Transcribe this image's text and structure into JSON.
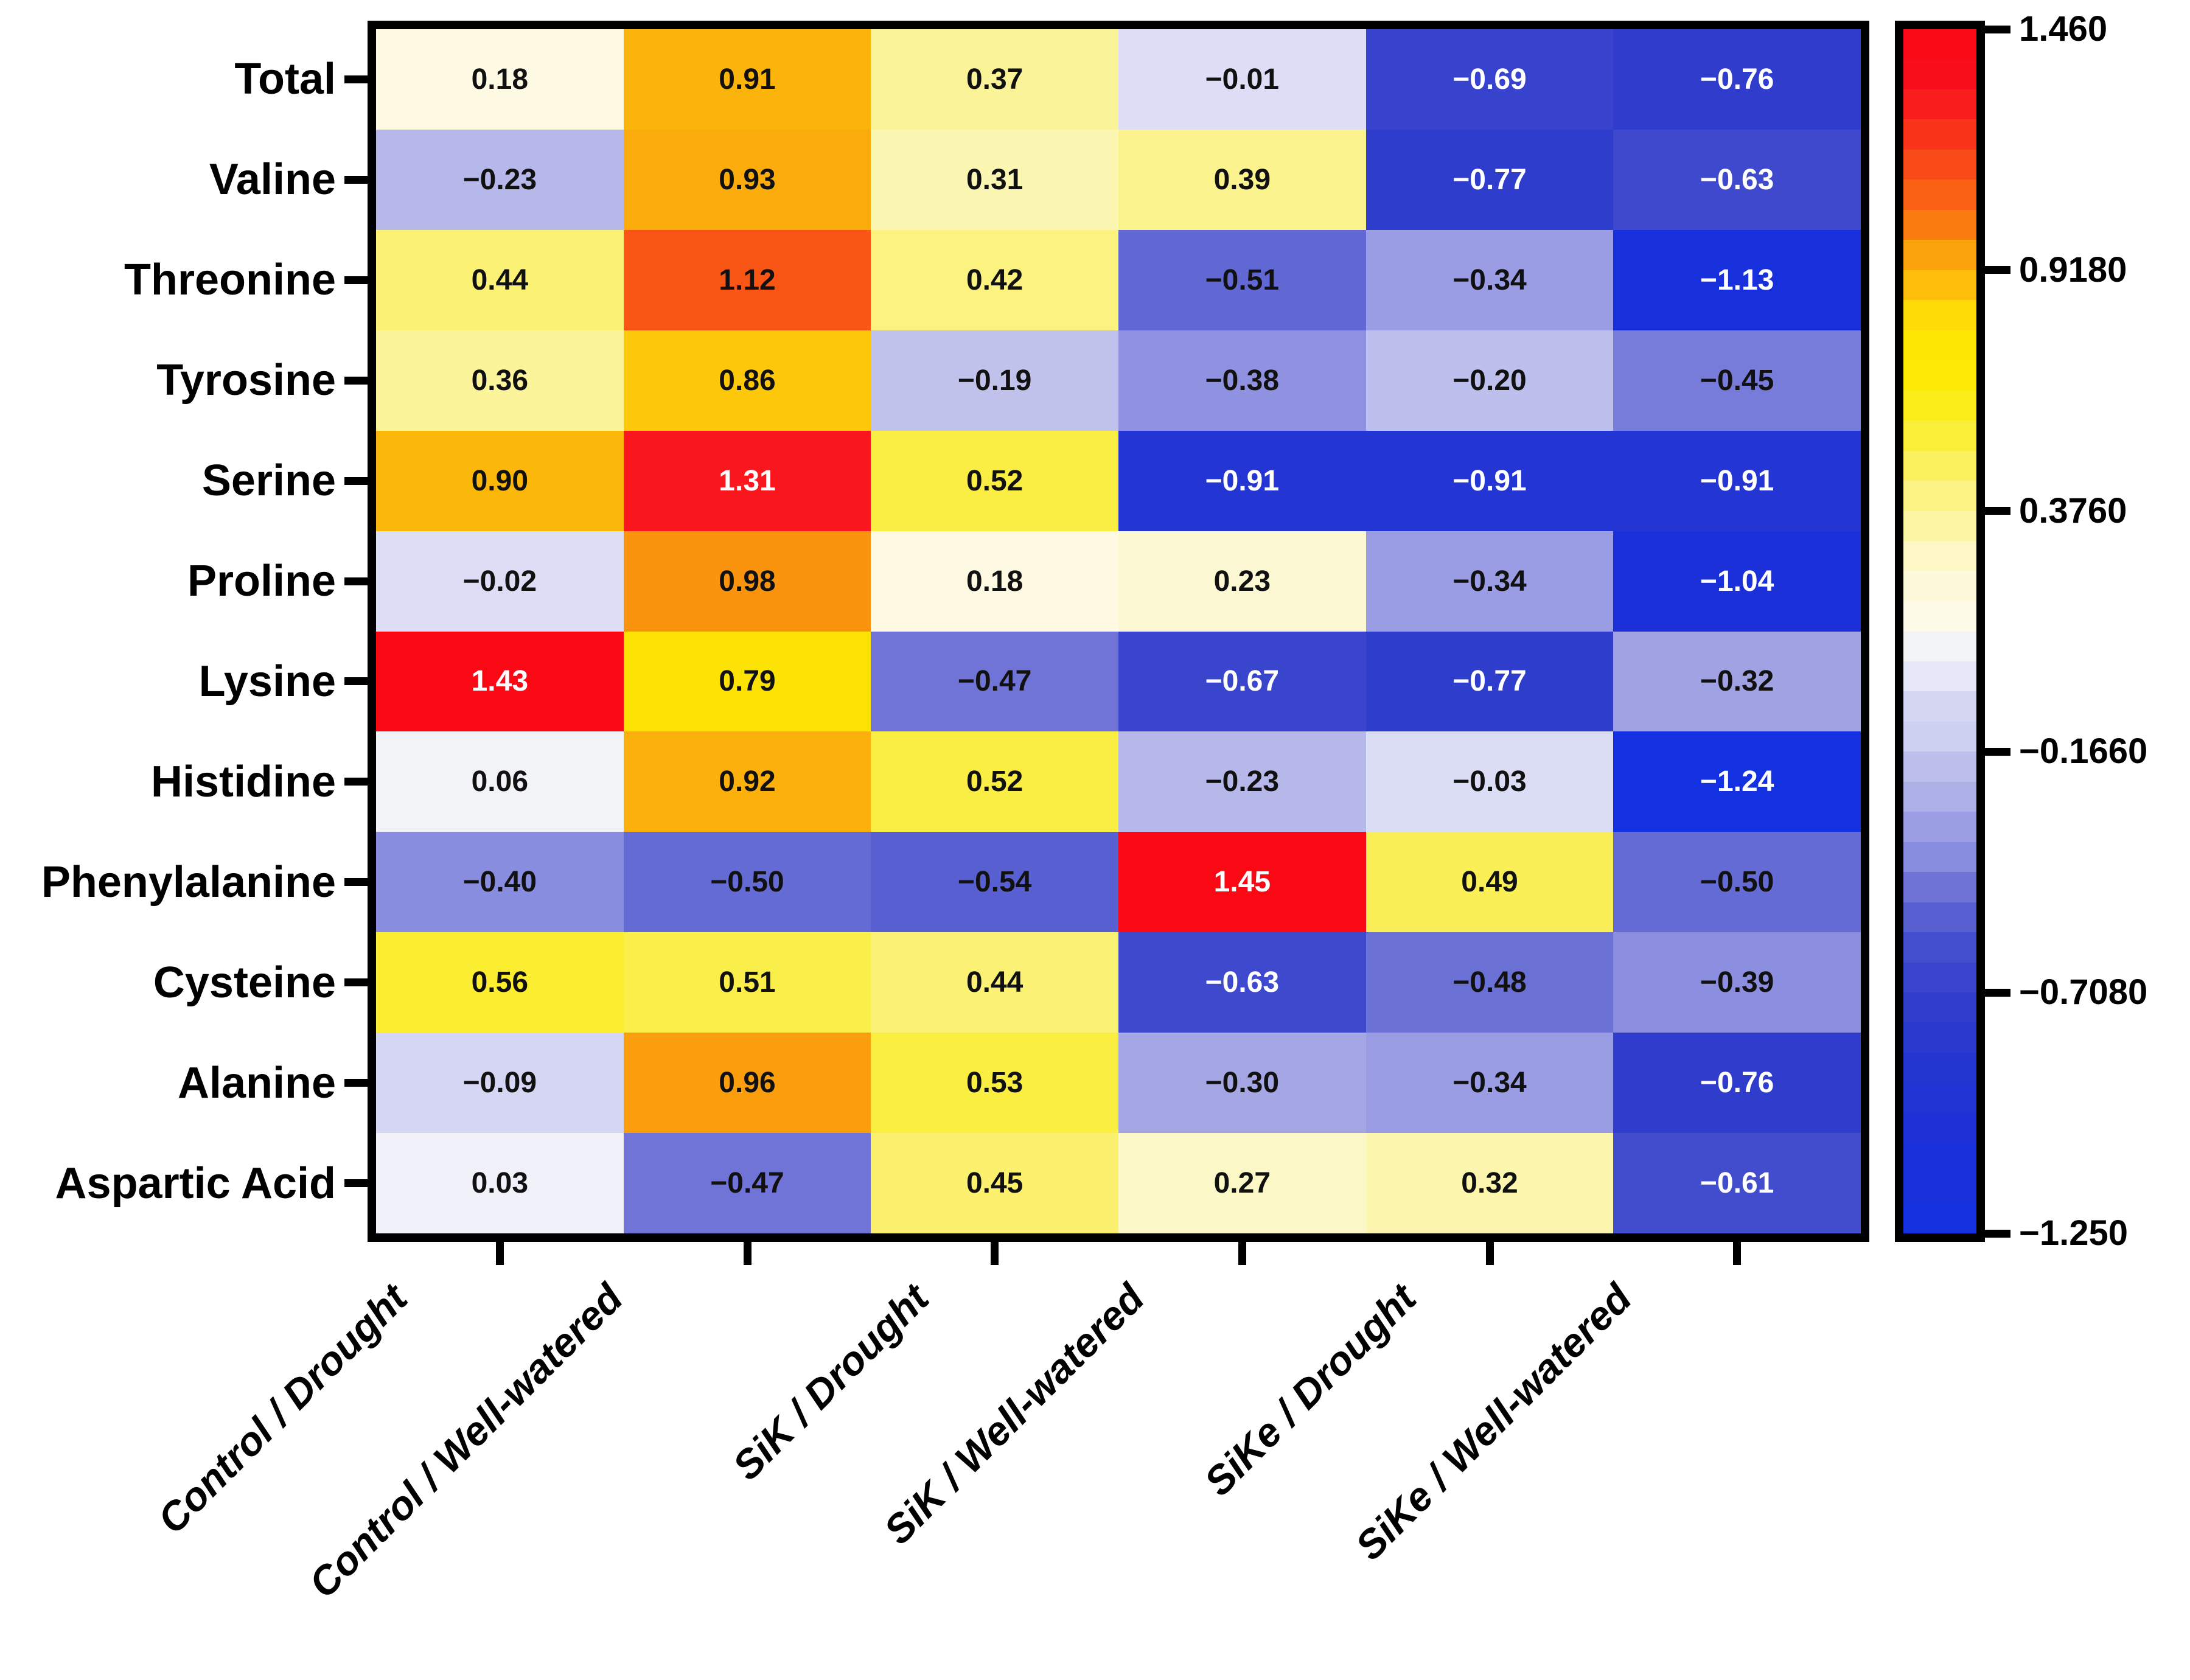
{
  "chart_data": {
    "type": "heatmap",
    "title": "",
    "xlabel": "",
    "ylabel": "",
    "grid": false,
    "legend_position": "right-colorbar",
    "rows": [
      "Total",
      "Valine",
      "Threonine",
      "Tyrosine",
      "Serine",
      "Proline",
      "Lysine",
      "Histidine",
      "Phenylalanine",
      "Cysteine",
      "Alanine",
      "Aspartic Acid"
    ],
    "columns": [
      "Control / Drought",
      "Control / Well-watered",
      "SiK / Drought",
      "SiK / Well-watered",
      "SiKe / Drought",
      "SiKe / Well-watered"
    ],
    "values": [
      [
        0.18,
        0.91,
        0.37,
        -0.01,
        -0.69,
        -0.76
      ],
      [
        -0.23,
        0.93,
        0.31,
        0.39,
        -0.77,
        -0.63
      ],
      [
        0.44,
        1.12,
        0.42,
        -0.51,
        -0.34,
        -1.13
      ],
      [
        0.36,
        0.86,
        -0.19,
        -0.38,
        -0.2,
        -0.45
      ],
      [
        0.9,
        1.31,
        0.52,
        -0.91,
        -0.91,
        -0.91
      ],
      [
        -0.02,
        0.98,
        0.18,
        0.23,
        -0.34,
        -1.04
      ],
      [
        1.43,
        0.79,
        -0.47,
        -0.67,
        -0.77,
        -0.32
      ],
      [
        0.06,
        0.92,
        0.52,
        -0.23,
        -0.03,
        -1.24
      ],
      [
        -0.4,
        -0.5,
        -0.54,
        1.45,
        0.49,
        -0.5
      ],
      [
        0.56,
        0.51,
        0.44,
        -0.63,
        -0.48,
        -0.39
      ],
      [
        -0.09,
        0.96,
        0.53,
        -0.3,
        -0.34,
        -0.76
      ],
      [
        0.03,
        -0.47,
        0.45,
        0.27,
        0.32,
        -0.61
      ]
    ],
    "colorbar": {
      "tick_labels": [
        "1.460",
        "0.9180",
        "0.3760",
        "−0.1660",
        "−0.7080",
        "−1.250"
      ],
      "max": 1.46,
      "min": -1.25,
      "bands": 40,
      "color_max": "#fa0713",
      "color_mid": "#f6f7f4",
      "color_min": "#1331e0"
    }
  }
}
